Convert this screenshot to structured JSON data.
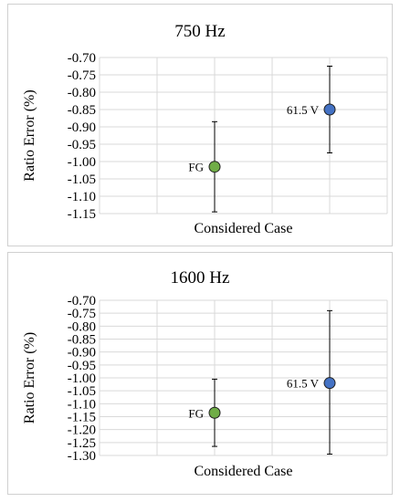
{
  "chart_data": [
    {
      "type": "scatter",
      "title": "750 Hz",
      "xlabel": "Considered Case",
      "ylabel": "Ratio Error (%)",
      "ylim": [
        -1.15,
        -0.7
      ],
      "ytick_step": 0.05,
      "yticks": [
        "-0.70",
        "-0.75",
        "-0.80",
        "-0.85",
        "-0.90",
        "-0.95",
        "-1.00",
        "-1.05",
        "-1.10",
        "-1.15"
      ],
      "grid": true,
      "points": [
        {
          "label": "FG",
          "y": -1.015,
          "err_low": -1.145,
          "err_high": -0.885,
          "color": "#70ad47",
          "col": 2
        },
        {
          "label": "61.5 V",
          "y": -0.85,
          "err_low": -0.975,
          "err_high": -0.725,
          "color": "#4472c4",
          "col": 4
        }
      ]
    },
    {
      "type": "scatter",
      "title": "1600 Hz",
      "xlabel": "Considered Case",
      "ylabel": "Ratio Error (%)",
      "ylim": [
        -1.3,
        -0.7
      ],
      "ytick_step": 0.05,
      "yticks": [
        "-0.70",
        "-0.75",
        "-0.80",
        "-0.85",
        "-0.90",
        "-0.95",
        "-1.00",
        "-1.05",
        "-1.10",
        "-1.15",
        "-1.20",
        "-1.25",
        "-1.30"
      ],
      "grid": true,
      "points": [
        {
          "label": "FG",
          "y": -1.135,
          "err_low": -1.265,
          "err_high": -1.005,
          "color": "#70ad47",
          "col": 2
        },
        {
          "label": "61.5 V",
          "y": -1.02,
          "err_low": -1.295,
          "err_high": -0.74,
          "color": "#4472c4",
          "col": 4
        }
      ]
    }
  ]
}
